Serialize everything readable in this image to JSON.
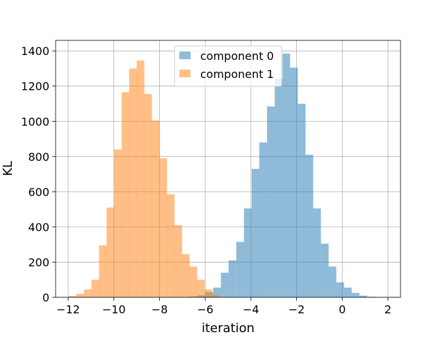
{
  "chart_data": {
    "type": "histogram",
    "title": "",
    "xlabel": "iteration",
    "ylabel": "KL",
    "xlim": [
      -12.55,
      2.55
    ],
    "ylim": [
      0,
      1460
    ],
    "x_ticks": [
      -12,
      -10,
      -8,
      -6,
      -4,
      -2,
      0,
      2
    ],
    "x_tick_labels": [
      "−12",
      "−10",
      "−8",
      "−6",
      "−4",
      "−2",
      "0",
      "2"
    ],
    "y_ticks": [
      0,
      200,
      400,
      600,
      800,
      1000,
      1200,
      1400
    ],
    "y_tick_labels": [
      "0",
      "200",
      "400",
      "600",
      "800",
      "1000",
      "1200",
      "1400"
    ],
    "grid": true,
    "legend_position": "upper center",
    "bin_width": 0.337,
    "series": [
      {
        "name": "component 0",
        "color": "#1f77b4",
        "alpha": 0.5,
        "bins_start": [
          -7.0,
          -6.663,
          -6.326,
          -5.989,
          -5.652,
          -5.315,
          -4.978,
          -4.641,
          -4.304,
          -3.967,
          -3.63,
          -3.293,
          -2.956,
          -2.619,
          -2.282,
          -1.945,
          -1.608,
          -1.271,
          -0.934,
          -0.597,
          -0.26,
          0.077,
          0.414,
          0.751,
          1.088
        ],
        "counts": [
          2,
          5,
          12,
          30,
          55,
          140,
          210,
          315,
          505,
          730,
          880,
          1085,
          1240,
          1385,
          1305,
          1100,
          810,
          505,
          305,
          175,
          85,
          55,
          25,
          10,
          3
        ]
      },
      {
        "name": "component 1",
        "color": "#ff7f0e",
        "alpha": 0.5,
        "bins_start": [
          -11.97,
          -11.64,
          -11.31,
          -10.98,
          -10.65,
          -10.32,
          -9.99,
          -9.66,
          -9.33,
          -9.0,
          -8.67,
          -8.34,
          -8.01,
          -7.68,
          -7.35,
          -7.02,
          -6.69,
          -6.36,
          -6.03,
          -5.7
        ],
        "counts": [
          8,
          20,
          45,
          100,
          295,
          510,
          840,
          1165,
          1300,
          1345,
          1155,
          1005,
          790,
          585,
          410,
          245,
          175,
          100,
          45,
          15
        ]
      }
    ]
  }
}
